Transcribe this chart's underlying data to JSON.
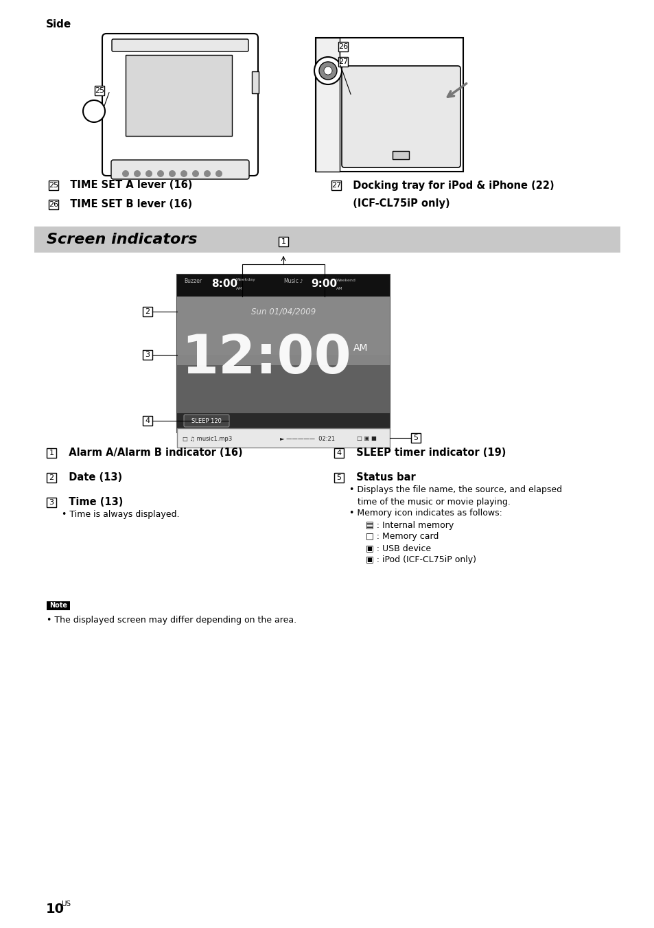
{
  "bg_color": "#ffffff",
  "side_label": "Side",
  "section_header_text": "Screen indicators",
  "section_header_bg": "#c8c8c8",
  "items_25_26": [
    {
      "num": "25",
      "text": "TIME SET A lever (16)"
    },
    {
      "num": "26",
      "text": "TIME SET B lever (16)"
    }
  ],
  "item_27": {
    "num": "27",
    "text": "Docking tray for iPod & iPhone (22)\n(ICF-CL75iP only)"
  },
  "indicators_left": [
    {
      "num": "1",
      "bold": "Alarm A/Alarm B indicator (16)",
      "subs": []
    },
    {
      "num": "2",
      "bold": "Date (13)",
      "subs": []
    },
    {
      "num": "3",
      "bold": "Time (13)",
      "subs": [
        "• Time is always displayed."
      ]
    }
  ],
  "indicators_right": [
    {
      "num": "4",
      "bold": "SLEEP timer indicator (19)",
      "subs": []
    },
    {
      "num": "5",
      "bold": "Status bar",
      "subs": [
        "• Displays the file name, the source, and elapsed",
        "   time of the music or movie playing.",
        "• Memory icon indicates as follows:",
        "      ▤ : Internal memory",
        "      □ : Memory card",
        "      ▣ : USB device",
        "      ▣ : iPod (ICF-CL75iP only)"
      ]
    }
  ],
  "note_text": "• The displayed screen may differ depending on the area.",
  "page_num": "10",
  "page_suffix": "US"
}
